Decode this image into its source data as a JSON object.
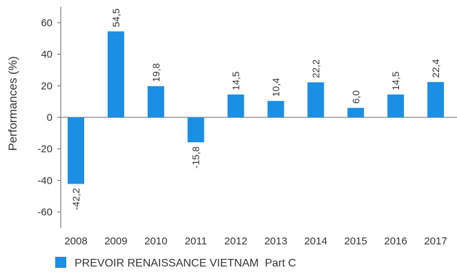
{
  "chart_data": {
    "type": "bar",
    "categories": [
      "2008",
      "2009",
      "2010",
      "2011",
      "2012",
      "2013",
      "2014",
      "2015",
      "2016",
      "2017"
    ],
    "series": [
      {
        "name": "PREVOIR RENAISSANCE VIETNAM  Part C",
        "values": [
          -42.2,
          54.5,
          19.8,
          -15.8,
          14.5,
          10.4,
          22.2,
          6.0,
          14.5,
          22.4
        ],
        "labels": [
          "-42,2",
          "54,5",
          "19,8",
          "-15,8",
          "14,5",
          "10,4",
          "22,2",
          "6,0",
          "14,5",
          "22,4"
        ],
        "color": "#1a8fe3"
      }
    ],
    "ylabel": "Performances (%)",
    "xlabel": "",
    "ylim": [
      -70,
      70
    ],
    "yticks": [
      -60,
      -40,
      -20,
      0,
      20,
      40,
      60
    ],
    "ytick_labels": [
      "-60",
      "-40",
      "-20",
      "0",
      "20",
      "40",
      "60"
    ],
    "grid": false,
    "legend_position": "bottom-left"
  }
}
